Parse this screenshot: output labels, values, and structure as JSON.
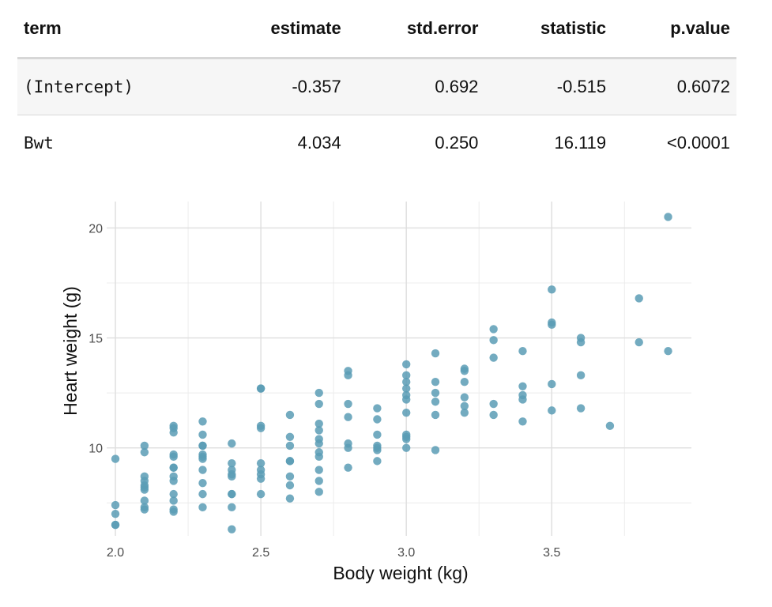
{
  "table": {
    "headers": [
      "term",
      "estimate",
      "std.error",
      "statistic",
      "p.value"
    ],
    "rows": [
      [
        "(Intercept)",
        "-0.357",
        "0.692",
        "-0.515",
        "0.6072"
      ],
      [
        "Bwt",
        "4.034",
        "0.250",
        "16.119",
        "<0.0001"
      ]
    ]
  },
  "chart_data": {
    "type": "scatter",
    "xlabel": "Body weight (kg)",
    "ylabel": "Heart weight (g)",
    "xlim": [
      1.97,
      3.98
    ],
    "ylim": [
      6.0,
      21.2
    ],
    "x_ticks": [
      "2.0",
      "2.5",
      "3.0",
      "3.5"
    ],
    "y_ticks": [
      "10",
      "15",
      "20"
    ],
    "grid": true,
    "point_color": "#5b9cb5",
    "points": [
      [
        2.0,
        9.5
      ],
      [
        2.0,
        7.4
      ],
      [
        2.0,
        7.0
      ],
      [
        2.0,
        6.5
      ],
      [
        2.0,
        6.5
      ],
      [
        2.1,
        10.1
      ],
      [
        2.1,
        9.8
      ],
      [
        2.1,
        8.7
      ],
      [
        2.1,
        8.5
      ],
      [
        2.1,
        8.3
      ],
      [
        2.1,
        8.2
      ],
      [
        2.1,
        8.1
      ],
      [
        2.1,
        7.6
      ],
      [
        2.1,
        7.3
      ],
      [
        2.1,
        7.2
      ],
      [
        2.2,
        11.0
      ],
      [
        2.2,
        10.9
      ],
      [
        2.2,
        10.7
      ],
      [
        2.2,
        9.7
      ],
      [
        2.2,
        9.6
      ],
      [
        2.2,
        9.1
      ],
      [
        2.2,
        9.1
      ],
      [
        2.2,
        8.7
      ],
      [
        2.2,
        8.5
      ],
      [
        2.2,
        7.9
      ],
      [
        2.2,
        7.6
      ],
      [
        2.2,
        7.2
      ],
      [
        2.2,
        7.1
      ],
      [
        2.3,
        11.2
      ],
      [
        2.3,
        10.6
      ],
      [
        2.3,
        10.1
      ],
      [
        2.3,
        10.1
      ],
      [
        2.3,
        9.7
      ],
      [
        2.3,
        9.6
      ],
      [
        2.3,
        9.5
      ],
      [
        2.3,
        9.0
      ],
      [
        2.3,
        8.4
      ],
      [
        2.3,
        7.9
      ],
      [
        2.3,
        7.3
      ],
      [
        2.4,
        10.2
      ],
      [
        2.4,
        9.3
      ],
      [
        2.4,
        9.0
      ],
      [
        2.4,
        8.8
      ],
      [
        2.4,
        8.7
      ],
      [
        2.4,
        7.9
      ],
      [
        2.4,
        7.9
      ],
      [
        2.4,
        7.3
      ],
      [
        2.4,
        6.3
      ],
      [
        2.5,
        12.7
      ],
      [
        2.5,
        12.7
      ],
      [
        2.5,
        11.0
      ],
      [
        2.5,
        10.9
      ],
      [
        2.5,
        9.3
      ],
      [
        2.5,
        9.0
      ],
      [
        2.5,
        8.8
      ],
      [
        2.5,
        8.6
      ],
      [
        2.5,
        7.9
      ],
      [
        2.6,
        11.5
      ],
      [
        2.6,
        10.5
      ],
      [
        2.6,
        10.1
      ],
      [
        2.6,
        9.4
      ],
      [
        2.6,
        9.4
      ],
      [
        2.6,
        8.7
      ],
      [
        2.6,
        8.3
      ],
      [
        2.6,
        7.7
      ],
      [
        2.7,
        12.5
      ],
      [
        2.7,
        12.0
      ],
      [
        2.7,
        11.1
      ],
      [
        2.7,
        10.8
      ],
      [
        2.7,
        10.4
      ],
      [
        2.7,
        10.2
      ],
      [
        2.7,
        9.8
      ],
      [
        2.7,
        9.6
      ],
      [
        2.7,
        9.0
      ],
      [
        2.7,
        8.5
      ],
      [
        2.7,
        8.0
      ],
      [
        2.8,
        13.5
      ],
      [
        2.8,
        13.3
      ],
      [
        2.8,
        12.0
      ],
      [
        2.8,
        11.4
      ],
      [
        2.8,
        10.2
      ],
      [
        2.8,
        10.0
      ],
      [
        2.8,
        9.1
      ],
      [
        2.9,
        11.8
      ],
      [
        2.9,
        11.3
      ],
      [
        2.9,
        10.6
      ],
      [
        2.9,
        10.1
      ],
      [
        2.9,
        10.0
      ],
      [
        2.9,
        9.9
      ],
      [
        2.9,
        9.4
      ],
      [
        3.0,
        13.8
      ],
      [
        3.0,
        13.3
      ],
      [
        3.0,
        13.0
      ],
      [
        3.0,
        12.7
      ],
      [
        3.0,
        12.4
      ],
      [
        3.0,
        12.2
      ],
      [
        3.0,
        11.6
      ],
      [
        3.0,
        10.6
      ],
      [
        3.0,
        10.5
      ],
      [
        3.0,
        10.4
      ],
      [
        3.0,
        10.0
      ],
      [
        3.1,
        14.3
      ],
      [
        3.1,
        13.0
      ],
      [
        3.1,
        12.5
      ],
      [
        3.1,
        12.1
      ],
      [
        3.1,
        11.5
      ],
      [
        3.1,
        9.9
      ],
      [
        3.2,
        13.6
      ],
      [
        3.2,
        13.5
      ],
      [
        3.2,
        13.0
      ],
      [
        3.2,
        12.3
      ],
      [
        3.2,
        11.9
      ],
      [
        3.2,
        11.6
      ],
      [
        3.3,
        15.4
      ],
      [
        3.3,
        14.9
      ],
      [
        3.3,
        14.1
      ],
      [
        3.3,
        12.0
      ],
      [
        3.3,
        11.5
      ],
      [
        3.4,
        14.4
      ],
      [
        3.4,
        12.8
      ],
      [
        3.4,
        12.4
      ],
      [
        3.4,
        12.2
      ],
      [
        3.4,
        11.2
      ],
      [
        3.5,
        17.2
      ],
      [
        3.5,
        15.7
      ],
      [
        3.5,
        15.6
      ],
      [
        3.5,
        12.9
      ],
      [
        3.5,
        11.7
      ],
      [
        3.6,
        15.0
      ],
      [
        3.6,
        14.8
      ],
      [
        3.6,
        13.3
      ],
      [
        3.6,
        11.8
      ],
      [
        3.7,
        11.0
      ],
      [
        3.8,
        16.8
      ],
      [
        3.8,
        14.8
      ],
      [
        3.9,
        20.5
      ],
      [
        3.9,
        14.4
      ]
    ]
  }
}
